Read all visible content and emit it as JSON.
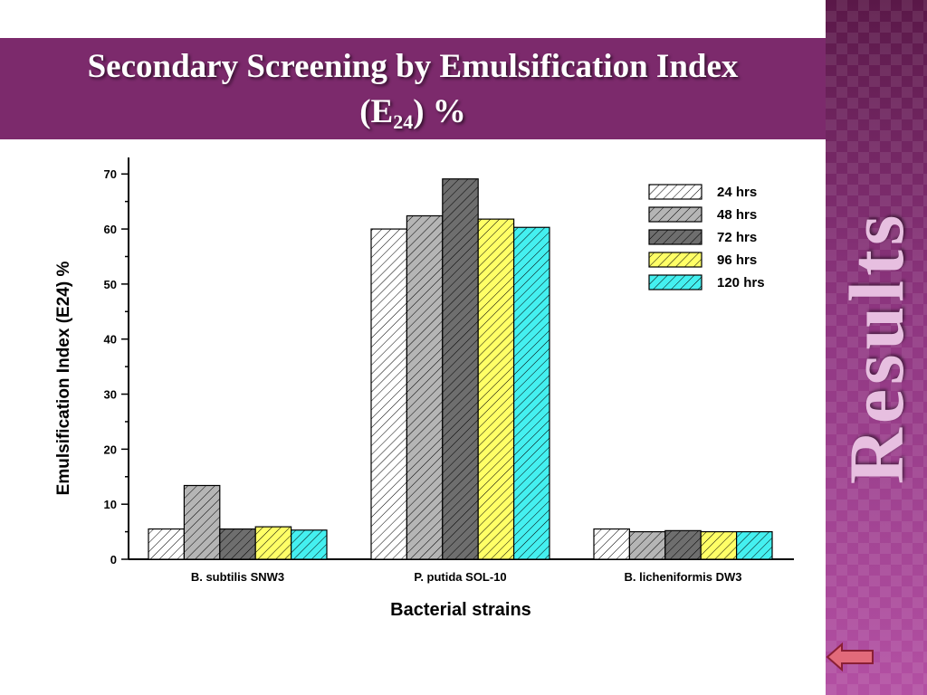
{
  "slide": {
    "title_line1": "Secondary Screening by Emulsification Index",
    "title_line2_prefix": "(E",
    "title_line2_sub": "24",
    "title_line2_suffix": ") %",
    "side_label": "Results",
    "accent_color": "#7c2a6c",
    "back_icon": "left-arrow-icon"
  },
  "chart_data": {
    "type": "bar",
    "title": "",
    "xlabel": "Bacterial strains",
    "ylabel": "Emulsification Index (E24) %",
    "ylim": [
      0,
      73
    ],
    "yticks": [
      0,
      10,
      20,
      30,
      40,
      50,
      60,
      70
    ],
    "categories": [
      "B. subtilis SNW3",
      "P. putida SOL-10",
      "B. licheniformis DW3"
    ],
    "legend_position": "top-right",
    "series": [
      {
        "name": "24 hrs",
        "color": "#ffffff",
        "values": [
          5.5,
          60.0,
          5.5
        ]
      },
      {
        "name": "48 hrs",
        "color": "#b5b5b5",
        "values": [
          13.4,
          62.4,
          5.0
        ]
      },
      {
        "name": "72 hrs",
        "color": "#6e6e6e",
        "values": [
          5.5,
          69.1,
          5.2
        ]
      },
      {
        "name": "96 hrs",
        "color": "#ffff66",
        "values": [
          5.9,
          61.8,
          5.0
        ]
      },
      {
        "name": "120 hrs",
        "color": "#44f0f0",
        "values": [
          5.3,
          60.3,
          5.0
        ]
      }
    ]
  }
}
